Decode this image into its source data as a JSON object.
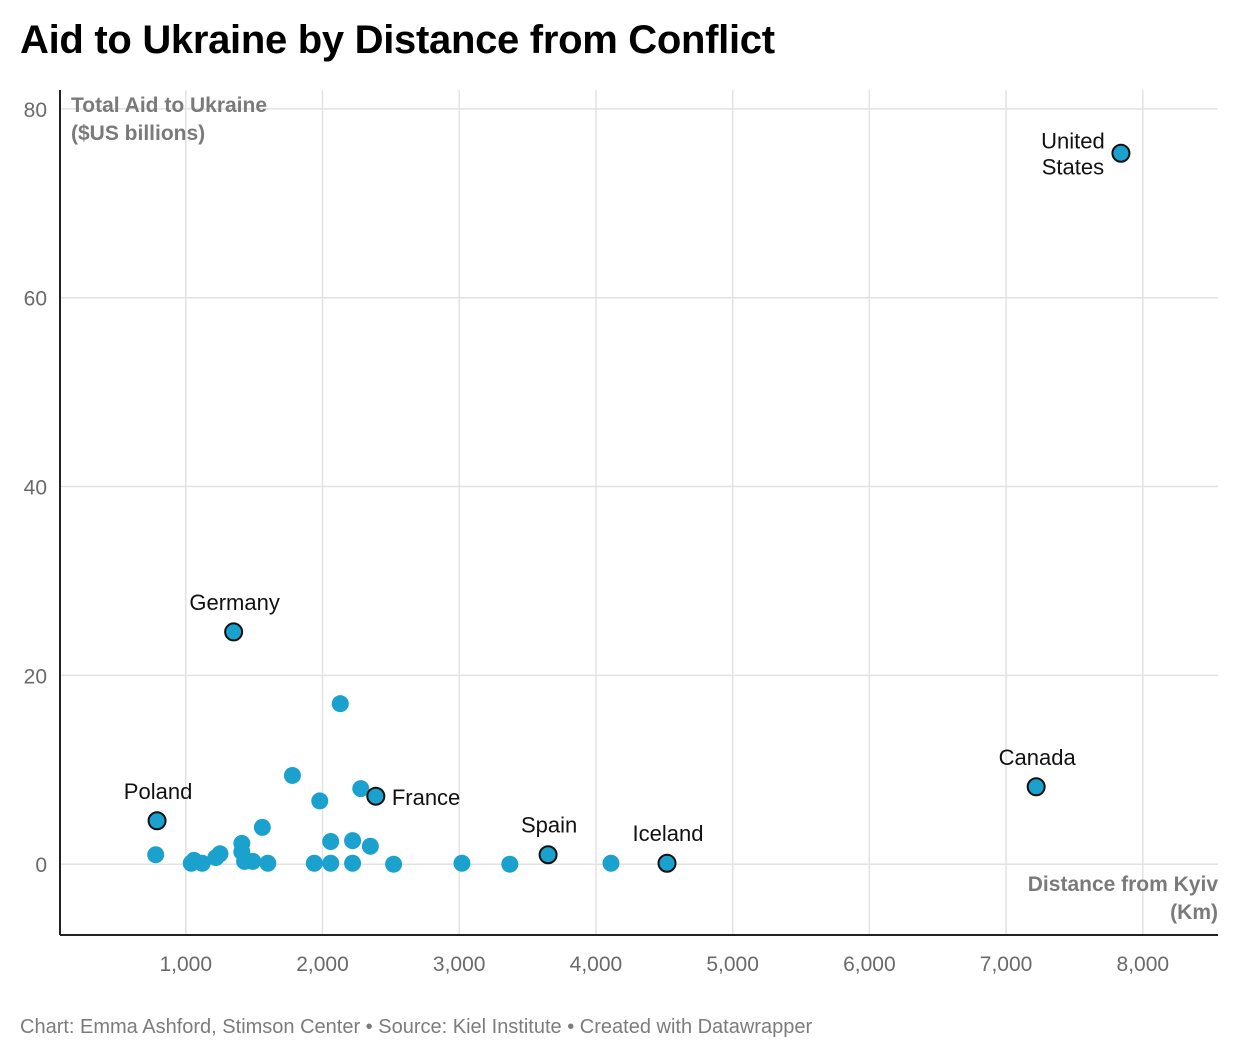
{
  "title": "Aid to Ukraine by Distance from Conflict",
  "footer": "Chart: Emma Ashford, Stimson Center • Source: Kiel Institute • Created with Datawrapper",
  "colors": {
    "point": "#1ba1ce",
    "highlight_stroke": "#111111",
    "grid": "#e2e2e2",
    "axis": "#222222"
  },
  "chart_data": {
    "type": "scatter",
    "xlabel": [
      "Distance from Kyiv",
      "(Km)"
    ],
    "ylabel": [
      "Total Aid to Ukraine",
      "($US billions)"
    ],
    "xlim": [
      80,
      8550
    ],
    "ylim": [
      -7.5,
      82
    ],
    "x_ticks": [
      1000,
      2000,
      3000,
      4000,
      5000,
      6000,
      7000,
      8000
    ],
    "x_tick_labels": [
      "1,000",
      "2,000",
      "3,000",
      "4,000",
      "5,000",
      "6,000",
      "7,000",
      "8,000"
    ],
    "y_ticks": [
      0,
      20,
      40,
      60,
      80
    ],
    "y_tick_labels": [
      "0",
      "20",
      "40",
      "60",
      "80"
    ],
    "grid": true,
    "labeled_points": [
      {
        "label": "United States",
        "lines": [
          "United",
          "States"
        ],
        "x": 7840,
        "y": 75.3,
        "label_pos": "left"
      },
      {
        "label": "Germany",
        "lines": [
          "Germany"
        ],
        "x": 1350,
        "y": 24.6,
        "label_pos": "top"
      },
      {
        "label": "Canada",
        "lines": [
          "Canada"
        ],
        "x": 7220,
        "y": 8.2,
        "label_pos": "top"
      },
      {
        "label": "France",
        "lines": [
          "France"
        ],
        "x": 2390,
        "y": 7.2,
        "label_pos": "right"
      },
      {
        "label": "Poland",
        "lines": [
          "Poland"
        ],
        "x": 790,
        "y": 4.6,
        "label_pos": "top"
      },
      {
        "label": "Spain",
        "lines": [
          "Spain"
        ],
        "x": 3650,
        "y": 1.0,
        "label_pos": "top"
      },
      {
        "label": "Iceland",
        "lines": [
          "Iceland"
        ],
        "x": 4520,
        "y": 0.1,
        "label_pos": "top"
      }
    ],
    "points": [
      {
        "x": 2130,
        "y": 17.0
      },
      {
        "x": 1780,
        "y": 9.4
      },
      {
        "x": 2280,
        "y": 8.0
      },
      {
        "x": 1980,
        "y": 6.7
      },
      {
        "x": 1560,
        "y": 3.9
      },
      {
        "x": 2060,
        "y": 2.4
      },
      {
        "x": 2220,
        "y": 2.5
      },
      {
        "x": 2350,
        "y": 1.9
      },
      {
        "x": 1410,
        "y": 2.2
      },
      {
        "x": 1410,
        "y": 1.3
      },
      {
        "x": 780,
        "y": 1.0
      },
      {
        "x": 1250,
        "y": 1.1
      },
      {
        "x": 1220,
        "y": 0.7
      },
      {
        "x": 1060,
        "y": 0.4
      },
      {
        "x": 1040,
        "y": 0.1
      },
      {
        "x": 1120,
        "y": 0.1
      },
      {
        "x": 1430,
        "y": 0.3
      },
      {
        "x": 1490,
        "y": 0.3
      },
      {
        "x": 1600,
        "y": 0.1
      },
      {
        "x": 1940,
        "y": 0.1
      },
      {
        "x": 2060,
        "y": 0.1
      },
      {
        "x": 2220,
        "y": 0.1
      },
      {
        "x": 2520,
        "y": 0.0
      },
      {
        "x": 3020,
        "y": 0.1
      },
      {
        "x": 3370,
        "y": 0.0
      },
      {
        "x": 4110,
        "y": 0.1
      }
    ]
  }
}
